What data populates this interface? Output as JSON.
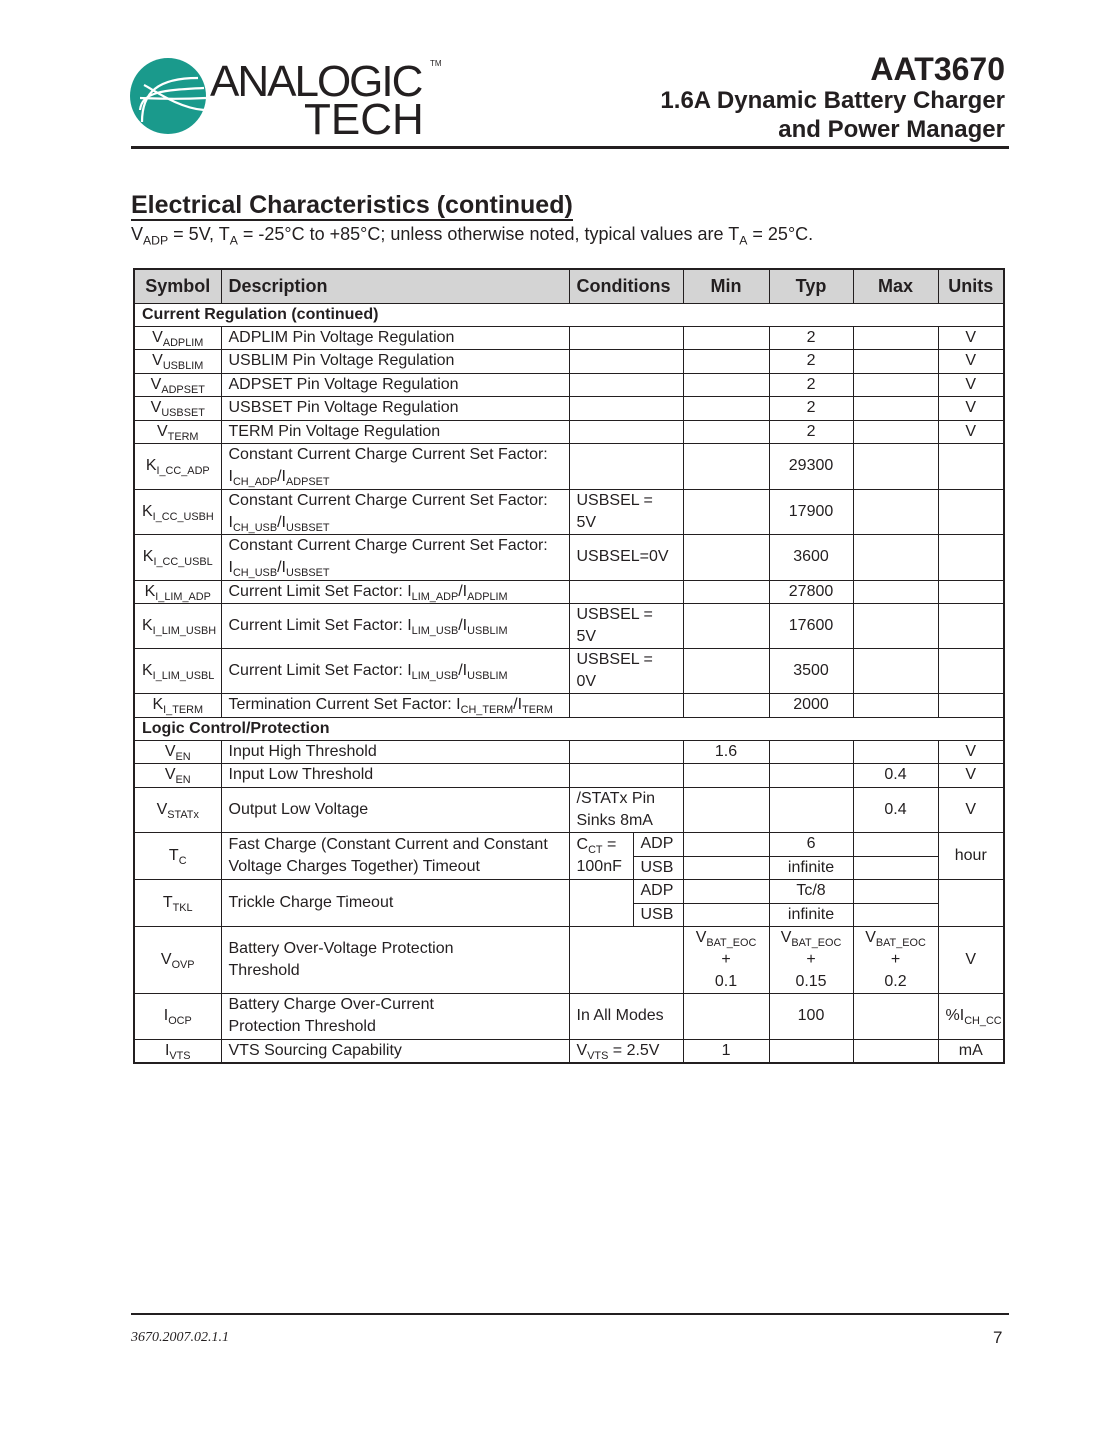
{
  "header": {
    "logo_text_top": "ANALOGIC",
    "logo_text_bottom": "TECH",
    "logo_tm": "TM",
    "part_number": "AAT3670",
    "subtitle_line1": "1.6A Dynamic Battery Charger",
    "subtitle_line2": "and Power Manager",
    "brand_color": "#1a9a8c"
  },
  "section": {
    "title": "Electrical Characteristics (continued)",
    "conditions": [
      [
        "V",
        {
          "s": "ADP"
        },
        " = 5V, T",
        {
          "s": "A"
        },
        " = -25°C to +85°C; unless otherwise noted, typical values are T",
        {
          "s": "A"
        },
        " = 25°C."
      ]
    ]
  },
  "table": {
    "headers": {
      "symbol": "Symbol",
      "description": "Description",
      "conditions": "Conditions",
      "min": "Min",
      "typ": "Typ",
      "max": "Max",
      "units": "Units"
    },
    "groups": [
      "Current Regulation (continued)",
      "Logic Control/Protection"
    ],
    "rows": [
      {
        "symbol": [
          [
            "V",
            {
              "s": "ADPLIM"
            }
          ]
        ],
        "desc": "ADPLIM Pin Voltage Regulation",
        "typ": "2",
        "units": "V"
      },
      {
        "symbol": [
          [
            "V",
            {
              "s": "USBLIM"
            }
          ]
        ],
        "desc": "USBLIM Pin Voltage Regulation",
        "typ": "2",
        "units": "V"
      },
      {
        "symbol": [
          [
            "V",
            {
              "s": "ADPSET"
            }
          ]
        ],
        "desc": "ADPSET Pin Voltage Regulation",
        "typ": "2",
        "units": "V"
      },
      {
        "symbol": [
          [
            "V",
            {
              "s": "USBSET"
            }
          ]
        ],
        "desc": "USBSET Pin Voltage Regulation",
        "typ": "2",
        "units": "V"
      },
      {
        "symbol": [
          [
            "V",
            {
              "s": "TERM"
            }
          ]
        ],
        "desc": "TERM Pin Voltage Regulation",
        "typ": "2",
        "units": "V"
      },
      {
        "symbol": [
          [
            "K",
            {
              "s": "I_CC_ADP"
            }
          ]
        ],
        "desc": [
          [
            "Constant Current Charge Current Set Factor:"
          ],
          [
            "I",
            {
              "s": "CH_ADP"
            },
            "/I",
            {
              "s": "ADPSET"
            }
          ]
        ],
        "typ": "29300"
      },
      {
        "symbol": [
          [
            "K",
            {
              "s": "I_CC_USBH"
            }
          ]
        ],
        "desc": [
          [
            "Constant Current Charge Current Set Factor:"
          ],
          [
            "I",
            {
              "s": "CH_USB"
            },
            "/I",
            {
              "s": "USBSET"
            }
          ]
        ],
        "cond": "USBSEL = 5V",
        "typ": "17900"
      },
      {
        "symbol": [
          [
            "K",
            {
              "s": "I_CC_USBL"
            }
          ]
        ],
        "desc": [
          [
            "Constant Current Charge Current Set Factor:"
          ],
          [
            "I",
            {
              "s": "CH_USB"
            },
            "/I",
            {
              "s": "USBSET"
            }
          ]
        ],
        "cond": "USBSEL=0V",
        "typ": "3600"
      },
      {
        "symbol": [
          [
            "K",
            {
              "s": "I_LIM_ADP"
            }
          ]
        ],
        "desc": [
          [
            "Current Limit Set Factor:  I",
            {
              "s": "LIM_ADP"
            },
            "/I",
            {
              "s": "ADPLIM"
            }
          ]
        ],
        "typ": "27800"
      },
      {
        "symbol": [
          [
            "K",
            {
              "s": "I_LIM_USBH"
            }
          ]
        ],
        "desc": [
          [
            "Current Limit Set Factor: I",
            {
              "s": "LIM_USB"
            },
            "/I",
            {
              "s": "USBLIM"
            }
          ]
        ],
        "cond": "USBSEL = 5V",
        "typ": "17600"
      },
      {
        "symbol": [
          [
            "K",
            {
              "s": "I_LIM_USBL"
            }
          ]
        ],
        "desc": [
          [
            "Current Limit Set Factor: I",
            {
              "s": "LIM_USB"
            },
            "/I",
            {
              "s": "USBLIM"
            }
          ]
        ],
        "cond": "USBSEL = 0V",
        "typ": "3500"
      },
      {
        "symbol": [
          [
            "K",
            {
              "s": "I_TERM"
            }
          ]
        ],
        "desc": [
          [
            "Termination Current Set Factor: I",
            {
              "s": "CH_TERM"
            },
            "/I",
            {
              "s": "TERM"
            }
          ]
        ],
        "typ": "2000"
      },
      {
        "symbol": [
          [
            "V",
            {
              "s": "EN"
            }
          ]
        ],
        "desc": "Input High Threshold",
        "min": "1.6",
        "units": "V"
      },
      {
        "symbol": [
          [
            "V",
            {
              "s": "EN"
            }
          ]
        ],
        "desc": "Input Low Threshold",
        "max": "0.4",
        "units": "V"
      },
      {
        "symbol": [
          [
            "V",
            {
              "s": "STATx"
            }
          ]
        ],
        "desc": "Output Low Voltage",
        "cond": [
          [
            "/STATx Pin"
          ],
          [
            "Sinks 8mA"
          ]
        ],
        "max": "0.4",
        "units": "V"
      },
      {
        "symbol": [
          [
            "T",
            {
              "s": "C"
            }
          ]
        ],
        "desc": [
          [
            "Fast Charge (Constant Current and Constant"
          ],
          [
            "Voltage Charges Together) Timeout"
          ]
        ],
        "cond": [
          [
            "C",
            {
              "s": "CT"
            },
            " ="
          ],
          [
            "100nF"
          ]
        ],
        "mode_a": "ADP",
        "typ_a": "6",
        "mode_b": "USB",
        "typ_b": "infinite",
        "units": "hour"
      },
      {
        "symbol": [
          [
            "T",
            {
              "s": "TKL"
            }
          ]
        ],
        "desc": "Trickle Charge Timeout",
        "mode_a": "ADP",
        "typ_a": "Tc/8",
        "mode_b": "USB",
        "typ_b": "infinite"
      },
      {
        "symbol": [
          [
            "V",
            {
              "s": "OVP"
            }
          ]
        ],
        "desc": [
          [
            "Battery Over-Voltage Protection"
          ],
          [
            "Threshold"
          ]
        ],
        "min": [
          [
            "V",
            {
              "s": "BAT_EOC"
            },
            " +"
          ],
          [
            "0.1"
          ]
        ],
        "typ": [
          [
            "V",
            {
              "s": "BAT_EOC"
            },
            " +"
          ],
          [
            "0.15"
          ]
        ],
        "max": [
          [
            "V",
            {
              "s": "BAT_EOC"
            },
            " +"
          ],
          [
            "0.2"
          ]
        ],
        "units": "V"
      },
      {
        "symbol": [
          [
            "I",
            {
              "s": "OCP"
            }
          ]
        ],
        "desc": [
          [
            "Battery Charge Over-Current"
          ],
          [
            "Protection Threshold"
          ]
        ],
        "cond": "In All Modes",
        "typ": "100",
        "units": [
          [
            "%I",
            {
              "s": "CH_CC"
            }
          ]
        ]
      },
      {
        "symbol": [
          [
            "I",
            {
              "s": "VTS"
            }
          ]
        ],
        "desc": "VTS Sourcing Capability",
        "cond": [
          [
            "V",
            {
              "s": "VTS"
            },
            " = 2.5V"
          ]
        ],
        "min": "1",
        "units": "mA"
      }
    ]
  },
  "footer": {
    "doc_code": "3670.2007.02.1.1",
    "page_number": "7"
  }
}
